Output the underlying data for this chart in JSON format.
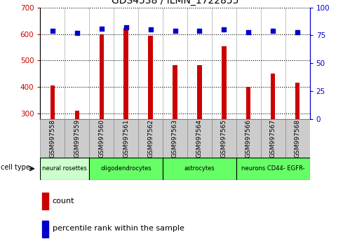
{
  "title": "GDS4538 / ILMN_1722855",
  "samples": [
    "GSM997558",
    "GSM997559",
    "GSM997560",
    "GSM997561",
    "GSM997562",
    "GSM997563",
    "GSM997564",
    "GSM997565",
    "GSM997566",
    "GSM997567",
    "GSM997568"
  ],
  "counts": [
    407,
    312,
    600,
    623,
    593,
    482,
    482,
    554,
    400,
    450,
    418
  ],
  "percentile_ranks": [
    79,
    77,
    81,
    82,
    80,
    79,
    79,
    80,
    78,
    79,
    78
  ],
  "ylim_left": [
    280,
    700
  ],
  "ylim_right": [
    0,
    100
  ],
  "yticks_left": [
    300,
    400,
    500,
    600,
    700
  ],
  "yticks_right": [
    0,
    25,
    50,
    75,
    100
  ],
  "bar_color": "#cc0000",
  "dot_color": "#0000cc",
  "cell_types": [
    {
      "label": "neural rosettes",
      "start": 0,
      "end": 2,
      "color": "#ccffcc"
    },
    {
      "label": "oligodendrocytes",
      "start": 2,
      "end": 5,
      "color": "#66ff66"
    },
    {
      "label": "astrocytes",
      "start": 5,
      "end": 8,
      "color": "#66ff66"
    },
    {
      "label": "neurons CD44- EGFR-",
      "start": 8,
      "end": 11,
      "color": "#66ff66"
    }
  ],
  "cell_type_label": "cell type",
  "legend_count_label": "count",
  "legend_pct_label": "percentile rank within the sample",
  "bar_width": 0.18,
  "plot_bg": "#ffffff",
  "ticklabel_bg": "#cccccc",
  "fig_bg": "#ffffff"
}
